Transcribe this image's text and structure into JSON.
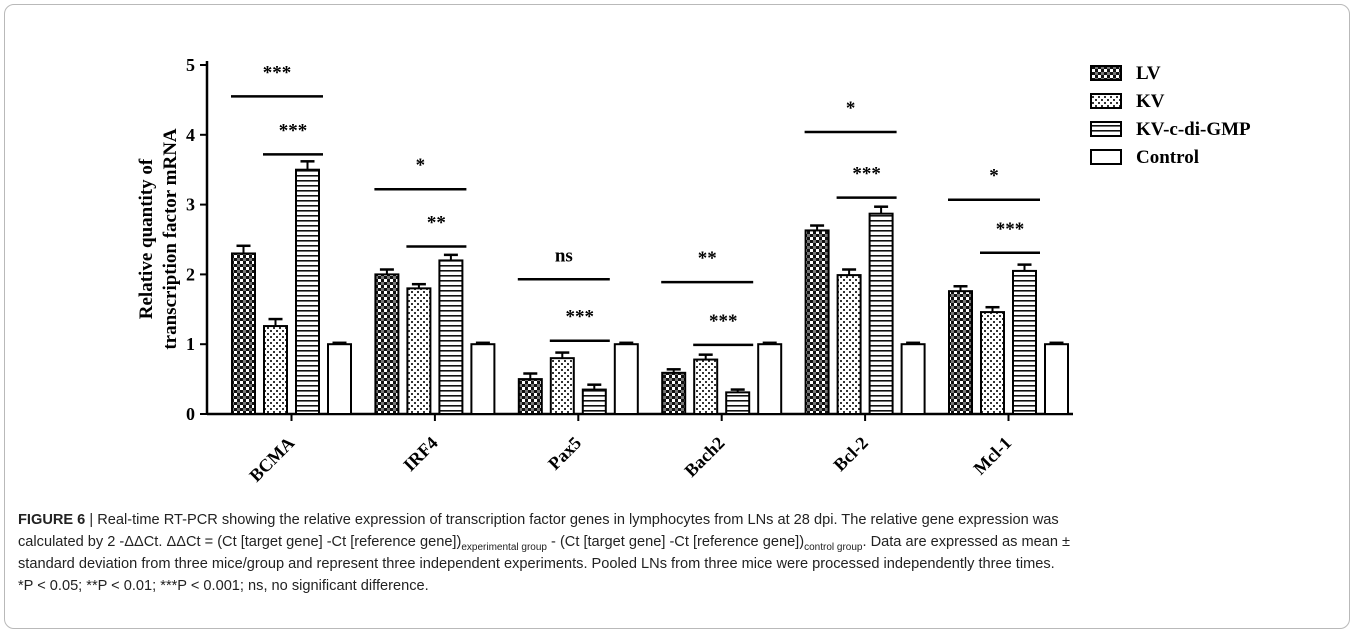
{
  "chart_data": {
    "type": "bar",
    "ylabel_lines": [
      "Relative quantity of",
      "transcription factor mRNA"
    ],
    "ylim": [
      0,
      5
    ],
    "yticks": [
      "0",
      "1",
      "2",
      "3",
      "4",
      "5"
    ],
    "categories": [
      "BCMA",
      "IRF4",
      "Pax5",
      "Bach2",
      "Bcl-2",
      "Mcl-1"
    ],
    "legend_position": "top-right",
    "series": [
      {
        "name": "LV",
        "pattern": "checker-dark",
        "values": [
          2.3,
          2.0,
          0.5,
          0.59,
          2.63,
          1.76
        ],
        "errors": [
          0.11,
          0.07,
          0.08,
          0.05,
          0.07,
          0.07
        ]
      },
      {
        "name": "KV",
        "pattern": "checker-light",
        "values": [
          1.26,
          1.8,
          0.8,
          0.78,
          1.99,
          1.46
        ],
        "errors": [
          0.1,
          0.06,
          0.08,
          0.07,
          0.08,
          0.07
        ]
      },
      {
        "name": "KV-c-di-GMP",
        "pattern": "horizontal-lines",
        "values": [
          3.5,
          2.2,
          0.35,
          0.31,
          2.87,
          2.05
        ],
        "errors": [
          0.12,
          0.08,
          0.07,
          0.04,
          0.1,
          0.09
        ]
      },
      {
        "name": "Control",
        "pattern": "open",
        "values": [
          1.0,
          1.0,
          1.0,
          1.0,
          1.0,
          1.0
        ],
        "errors": [
          0.02,
          0.02,
          0.02,
          0.02,
          0.02,
          0.02
        ]
      }
    ],
    "significance": [
      {
        "category": 0,
        "label": "***",
        "from_series": 0,
        "to_series": 2,
        "y": 4.55
      },
      {
        "category": 0,
        "label": "***",
        "from_series": 1,
        "to_series": 2,
        "y": 3.72
      },
      {
        "category": 1,
        "label": "*",
        "from_series": 0,
        "to_series": 2,
        "y": 3.22
      },
      {
        "category": 1,
        "label": "**",
        "from_series": 1,
        "to_series": 2,
        "y": 2.4
      },
      {
        "category": 2,
        "label": "ns",
        "from_series": 0,
        "to_series": 2,
        "y": 1.93
      },
      {
        "category": 2,
        "label": "***",
        "from_series": 1,
        "to_series": 2,
        "y": 1.05
      },
      {
        "category": 3,
        "label": "**",
        "from_series": 0,
        "to_series": 2,
        "y": 1.89
      },
      {
        "category": 3,
        "label": "***",
        "from_series": 1,
        "to_series": 2,
        "y": 0.99
      },
      {
        "category": 4,
        "label": "*",
        "from_series": 0,
        "to_series": 2,
        "y": 4.04
      },
      {
        "category": 4,
        "label": "***",
        "from_series": 1,
        "to_series": 2,
        "y": 3.1
      },
      {
        "category": 5,
        "label": "*",
        "from_series": 0,
        "to_series": 2,
        "y": 3.07
      },
      {
        "category": 5,
        "label": "***",
        "from_series": 1,
        "to_series": 2,
        "y": 2.31
      }
    ]
  },
  "caption": {
    "figure_label": "FIGURE 6",
    "separator": " | ",
    "line1": "Real-time RT-PCR showing the relative expression of transcription factor genes in lymphocytes from LNs at 28 dpi. The relative gene expression was",
    "line2_a": "calculated by 2 -ΔΔCt. ΔΔCt = (Ct [target gene] -Ct [reference gene])",
    "line2_sub1": "experimental group",
    "line2_b": " - (Ct [target gene] -Ct [reference gene])",
    "line2_sub2": "control group",
    "line2_c": ". Data are expressed as mean ±",
    "line3": "standard deviation from three mice/group and represent three independent experiments. Pooled LNs from three mice were processed independently three times.",
    "line4": "*P < 0.05; **P < 0.01; ***P < 0.001; ns, no significant difference."
  }
}
